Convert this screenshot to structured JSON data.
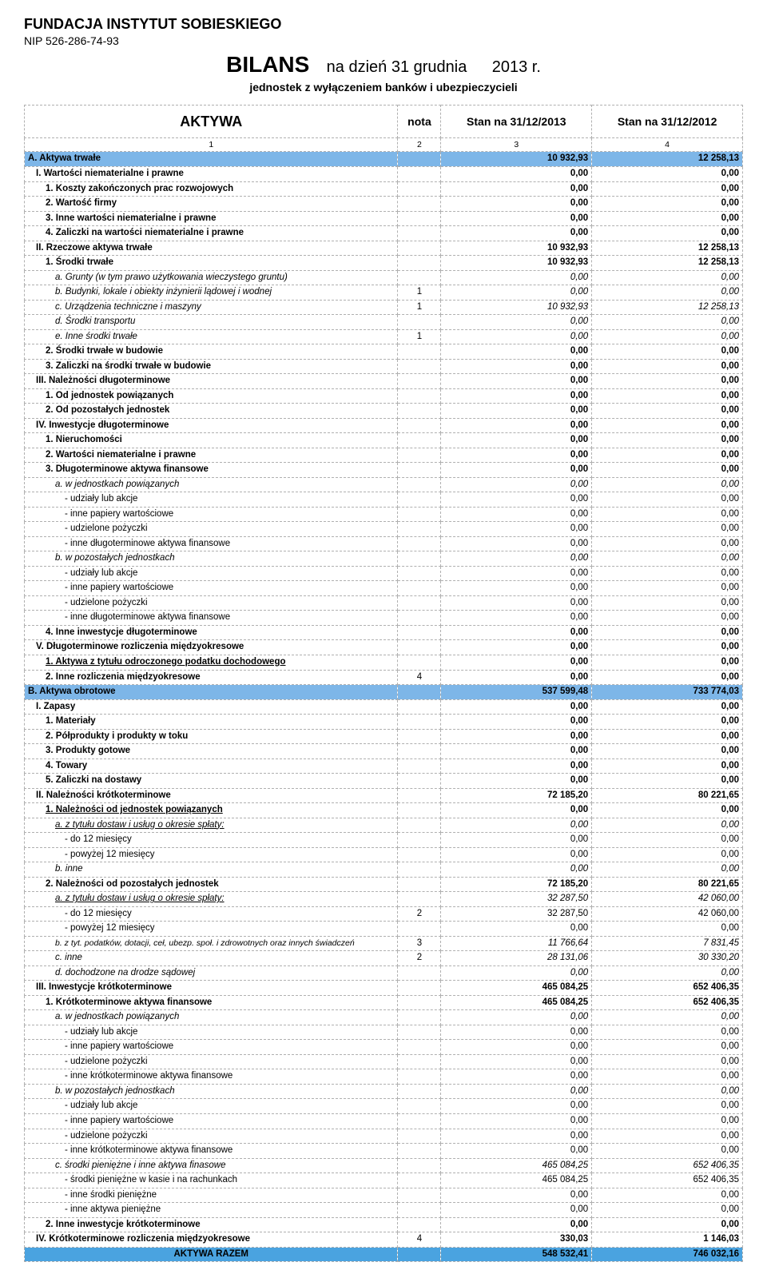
{
  "header": {
    "org": "FUNDACJA INSTYTUT SOBIESKIEGO",
    "nip": "NIP 526-286-74-93",
    "title": "BILANS",
    "title_sub": "na dzień    31 grudnia",
    "year": "2013 r.",
    "subtitle": "jednostek z wyłączeniem banków i ubezpieczycieli"
  },
  "columns": {
    "c1": "AKTYWA",
    "c2": "nota",
    "c3": "Stan na 31/12/2013",
    "c4": "Stan na 31/12/2012"
  },
  "colnums": {
    "c1": "1",
    "c2": "2",
    "c3": "3",
    "c4": "4"
  },
  "colors": {
    "section_bg": "#7db6e8",
    "total_bg": "#4aa3e0",
    "border": "#b0b0b0"
  },
  "rows": [
    {
      "cls": "section",
      "pad": 0,
      "style": "bold",
      "label": "A. Aktywa trwałe",
      "nota": "",
      "v1": "10 932,93",
      "v2": "12 258,13"
    },
    {
      "pad": 1,
      "style": "bold",
      "label": "I. Wartości niematerialne i prawne",
      "nota": "",
      "v1": "0,00",
      "v2": "0,00"
    },
    {
      "pad": 2,
      "style": "bold",
      "label": "1. Koszty zakończonych prac rozwojowych",
      "nota": "",
      "v1": "0,00",
      "v2": "0,00"
    },
    {
      "pad": 2,
      "style": "bold",
      "label": "2. Wartość firmy",
      "nota": "",
      "v1": "0,00",
      "v2": "0,00"
    },
    {
      "pad": 2,
      "style": "bold",
      "label": "3. Inne wartości niematerialne i prawne",
      "nota": "",
      "v1": "0,00",
      "v2": "0,00"
    },
    {
      "pad": 2,
      "style": "bold",
      "label": "4. Zaliczki na wartości niematerialne i prawne",
      "nota": "",
      "v1": "0,00",
      "v2": "0,00"
    },
    {
      "pad": 1,
      "style": "bold",
      "label": "II. Rzeczowe aktywa trwałe",
      "nota": "",
      "v1": "10 932,93",
      "v2": "12 258,13"
    },
    {
      "pad": 2,
      "style": "bold",
      "label": "1. Środki trwałe",
      "nota": "",
      "v1": "10 932,93",
      "v2": "12 258,13"
    },
    {
      "pad": 3,
      "style": "italic",
      "label": "a. Grunty (w tym prawo użytkowania wieczystego gruntu)",
      "nota": "",
      "v1": "0,00",
      "v2": "0,00"
    },
    {
      "pad": 3,
      "style": "italic",
      "label": "b. Budynki, lokale i obiekty inżynierii lądowej i wodnej",
      "nota": "1",
      "v1": "0,00",
      "v2": "0,00"
    },
    {
      "pad": 3,
      "style": "italic",
      "label": "c. Urządzenia techniczne i maszyny",
      "nota": "1",
      "v1": "10 932,93",
      "v2": "12 258,13"
    },
    {
      "pad": 3,
      "style": "italic",
      "label": "d. Środki transportu",
      "nota": "",
      "v1": "0,00",
      "v2": "0,00"
    },
    {
      "pad": 3,
      "style": "italic",
      "label": "e. Inne środki trwałe",
      "nota": "1",
      "v1": "0,00",
      "v2": "0,00"
    },
    {
      "pad": 2,
      "style": "bold",
      "label": "2. Środki trwałe w budowie",
      "nota": "",
      "v1": "0,00",
      "v2": "0,00"
    },
    {
      "pad": 2,
      "style": "bold",
      "label": "3. Zaliczki na środki trwałe w budowie",
      "nota": "",
      "v1": "0,00",
      "v2": "0,00"
    },
    {
      "pad": 1,
      "style": "bold",
      "label": "III. Należności długoterminowe",
      "nota": "",
      "v1": "0,00",
      "v2": "0,00"
    },
    {
      "pad": 2,
      "style": "bold",
      "label": "1. Od jednostek powiązanych",
      "nota": "",
      "v1": "0,00",
      "v2": "0,00"
    },
    {
      "pad": 2,
      "style": "bold",
      "label": "2. Od pozostałych jednostek",
      "nota": "",
      "v1": "0,00",
      "v2": "0,00"
    },
    {
      "pad": 1,
      "style": "bold",
      "label": "IV. Inwestycje długoterminowe",
      "nota": "",
      "v1": "0,00",
      "v2": "0,00"
    },
    {
      "pad": 2,
      "style": "bold",
      "label": "1. Nieruchomości",
      "nota": "",
      "v1": "0,00",
      "v2": "0,00"
    },
    {
      "pad": 2,
      "style": "bold",
      "label": "2. Wartości niematerialne i prawne",
      "nota": "",
      "v1": "0,00",
      "v2": "0,00"
    },
    {
      "pad": 2,
      "style": "bold",
      "label": "3. Długoterminowe aktywa finansowe",
      "nota": "",
      "v1": "0,00",
      "v2": "0,00"
    },
    {
      "pad": 3,
      "style": "italic",
      "label": "a. w jednostkach powiązanych",
      "nota": "",
      "v1": "0,00",
      "v2": "0,00"
    },
    {
      "pad": 4,
      "style": "",
      "label": "- udziały lub akcje",
      "nota": "",
      "v1": "0,00",
      "v2": "0,00"
    },
    {
      "pad": 4,
      "style": "",
      "label": "- inne papiery wartościowe",
      "nota": "",
      "v1": "0,00",
      "v2": "0,00"
    },
    {
      "pad": 4,
      "style": "",
      "label": "- udzielone pożyczki",
      "nota": "",
      "v1": "0,00",
      "v2": "0,00"
    },
    {
      "pad": 4,
      "style": "",
      "label": "- inne długoterminowe aktywa finansowe",
      "nota": "",
      "v1": "0,00",
      "v2": "0,00"
    },
    {
      "pad": 3,
      "style": "italic",
      "label": "b. w pozostałych jednostkach",
      "nota": "",
      "v1": "0,00",
      "v2": "0,00"
    },
    {
      "pad": 4,
      "style": "",
      "label": "- udziały lub akcje",
      "nota": "",
      "v1": "0,00",
      "v2": "0,00"
    },
    {
      "pad": 4,
      "style": "",
      "label": "- inne papiery wartościowe",
      "nota": "",
      "v1": "0,00",
      "v2": "0,00"
    },
    {
      "pad": 4,
      "style": "",
      "label": "- udzielone pożyczki",
      "nota": "",
      "v1": "0,00",
      "v2": "0,00"
    },
    {
      "pad": 4,
      "style": "",
      "label": "- inne długoterminowe aktywa finansowe",
      "nota": "",
      "v1": "0,00",
      "v2": "0,00"
    },
    {
      "pad": 2,
      "style": "bold",
      "label": "4. Inne inwestycje długoterminowe",
      "nota": "",
      "v1": "0,00",
      "v2": "0,00"
    },
    {
      "pad": 1,
      "style": "bold",
      "label": "V. Długoterminowe rozliczenia międzyokresowe",
      "nota": "",
      "v1": "0,00",
      "v2": "0,00"
    },
    {
      "pad": 2,
      "style": "bold underline",
      "label": "1. Aktywa z tytułu odroczonego podatku dochodowego",
      "nota": "",
      "v1": "0,00",
      "v2": "0,00"
    },
    {
      "pad": 2,
      "style": "bold",
      "label": "2. Inne rozliczenia międzyokresowe",
      "nota": "4",
      "v1": "0,00",
      "v2": "0,00"
    },
    {
      "cls": "section",
      "pad": 0,
      "style": "bold",
      "label": "B. Aktywa obrotowe",
      "nota": "",
      "v1": "537 599,48",
      "v2": "733 774,03"
    },
    {
      "pad": 1,
      "style": "bold",
      "label": "I. Zapasy",
      "nota": "",
      "v1": "0,00",
      "v2": "0,00"
    },
    {
      "pad": 2,
      "style": "bold",
      "label": "1. Materiały",
      "nota": "",
      "v1": "0,00",
      "v2": "0,00"
    },
    {
      "pad": 2,
      "style": "bold",
      "label": "2. Półprodukty i produkty w toku",
      "nota": "",
      "v1": "0,00",
      "v2": "0,00"
    },
    {
      "pad": 2,
      "style": "bold",
      "label": "3. Produkty gotowe",
      "nota": "",
      "v1": "0,00",
      "v2": "0,00"
    },
    {
      "pad": 2,
      "style": "bold",
      "label": "4. Towary",
      "nota": "",
      "v1": "0,00",
      "v2": "0,00"
    },
    {
      "pad": 2,
      "style": "bold",
      "label": "5. Zaliczki na dostawy",
      "nota": "",
      "v1": "0,00",
      "v2": "0,00"
    },
    {
      "pad": 1,
      "style": "bold",
      "label": "II. Należności krótkoterminowe",
      "nota": "",
      "v1": "72 185,20",
      "v2": "80 221,65"
    },
    {
      "pad": 2,
      "style": "bold underline",
      "label": "1. Należności od jednostek powiązanych",
      "nota": "",
      "v1": "0,00",
      "v2": "0,00"
    },
    {
      "pad": 3,
      "style": "italic underline",
      "label": "a. z tytułu dostaw i usług o okresie spłaty:",
      "nota": "",
      "v1": "0,00",
      "v2": "0,00"
    },
    {
      "pad": 4,
      "style": "",
      "label": "- do 12 miesięcy",
      "nota": "",
      "v1": "0,00",
      "v2": "0,00"
    },
    {
      "pad": 4,
      "style": "",
      "label": "- powyżej 12 miesięcy",
      "nota": "",
      "v1": "0,00",
      "v2": "0,00"
    },
    {
      "pad": 3,
      "style": "italic",
      "label": "b. inne",
      "nota": "",
      "v1": "0,00",
      "v2": "0,00"
    },
    {
      "pad": 2,
      "style": "bold",
      "label": "2. Należności od pozostałych jednostek",
      "nota": "",
      "v1": "72 185,20",
      "v2": "80 221,65"
    },
    {
      "pad": 3,
      "style": "italic underline",
      "label": "a. z tytułu dostaw i usług o okresie spłaty:",
      "nota": "",
      "v1": "32 287,50",
      "v2": "42 060,00"
    },
    {
      "pad": 4,
      "style": "",
      "label": "- do 12 miesięcy",
      "nota": "2",
      "v1": "32 287,50",
      "v2": "42 060,00"
    },
    {
      "pad": 4,
      "style": "",
      "label": "- powyżej 12 miesięcy",
      "nota": "",
      "v1": "0,00",
      "v2": "0,00"
    },
    {
      "pad": 3,
      "style": "italic small",
      "label": "b. z tyt. podatków, dotacji, ceł, ubezp. społ. i zdrowotnych oraz innych świadczeń",
      "nota": "3",
      "v1": "11 766,64",
      "v2": "7 831,45"
    },
    {
      "pad": 3,
      "style": "italic",
      "label": "c. inne",
      "nota": "2",
      "v1": "28 131,06",
      "v2": "30 330,20"
    },
    {
      "pad": 3,
      "style": "italic",
      "label": "d. dochodzone na drodze sądowej",
      "nota": "",
      "v1": "0,00",
      "v2": "0,00"
    },
    {
      "pad": 1,
      "style": "bold",
      "label": "III. Inwestycje krótkoterminowe",
      "nota": "",
      "v1": "465 084,25",
      "v2": "652 406,35"
    },
    {
      "pad": 2,
      "style": "bold",
      "label": "1. Krótkoterminowe aktywa finansowe",
      "nota": "",
      "v1": "465 084,25",
      "v2": "652 406,35"
    },
    {
      "pad": 3,
      "style": "italic",
      "label": "a. w jednostkach powiązanych",
      "nota": "",
      "v1": "0,00",
      "v2": "0,00"
    },
    {
      "pad": 4,
      "style": "",
      "label": "- udziały lub akcje",
      "nota": "",
      "v1": "0,00",
      "v2": "0,00"
    },
    {
      "pad": 4,
      "style": "",
      "label": "- inne papiery wartościowe",
      "nota": "",
      "v1": "0,00",
      "v2": "0,00"
    },
    {
      "pad": 4,
      "style": "",
      "label": "- udzielone pożyczki",
      "nota": "",
      "v1": "0,00",
      "v2": "0,00"
    },
    {
      "pad": 4,
      "style": "",
      "label": "- inne krótkoterminowe aktywa finansowe",
      "nota": "",
      "v1": "0,00",
      "v2": "0,00"
    },
    {
      "pad": 3,
      "style": "italic",
      "label": "b. w pozostałych jednostkach",
      "nota": "",
      "v1": "0,00",
      "v2": "0,00"
    },
    {
      "pad": 4,
      "style": "",
      "label": "- udziały lub akcje",
      "nota": "",
      "v1": "0,00",
      "v2": "0,00"
    },
    {
      "pad": 4,
      "style": "",
      "label": "- inne papiery wartościowe",
      "nota": "",
      "v1": "0,00",
      "v2": "0,00"
    },
    {
      "pad": 4,
      "style": "",
      "label": "- udzielone pożyczki",
      "nota": "",
      "v1": "0,00",
      "v2": "0,00"
    },
    {
      "pad": 4,
      "style": "",
      "label": "- inne krótkoterminowe aktywa finansowe",
      "nota": "",
      "v1": "0,00",
      "v2": "0,00"
    },
    {
      "pad": 3,
      "style": "italic",
      "label": "c. środki pieniężne i inne aktywa finasowe",
      "nota": "",
      "v1": "465 084,25",
      "v2": "652 406,35"
    },
    {
      "pad": 4,
      "style": "",
      "label": "- środki pieniężne w kasie i na rachunkach",
      "nota": "",
      "v1": "465 084,25",
      "v2": "652 406,35"
    },
    {
      "pad": 4,
      "style": "",
      "label": "- inne środki pieniężne",
      "nota": "",
      "v1": "0,00",
      "v2": "0,00"
    },
    {
      "pad": 4,
      "style": "",
      "label": "- inne aktywa pieniężne",
      "nota": "",
      "v1": "0,00",
      "v2": "0,00"
    },
    {
      "pad": 2,
      "style": "bold",
      "label": "2. Inne inwestycje krótkoterminowe",
      "nota": "",
      "v1": "0,00",
      "v2": "0,00"
    },
    {
      "pad": 1,
      "style": "bold",
      "label": "IV. Krótkoterminowe rozliczenia międzyokresowe",
      "nota": "4",
      "v1": "330,03",
      "v2": "1 146,03"
    },
    {
      "cls": "total",
      "pad": 0,
      "style": "bold",
      "centered": true,
      "label": "AKTYWA RAZEM",
      "nota": "",
      "v1": "548 532,41",
      "v2": "746 032,16"
    }
  ]
}
